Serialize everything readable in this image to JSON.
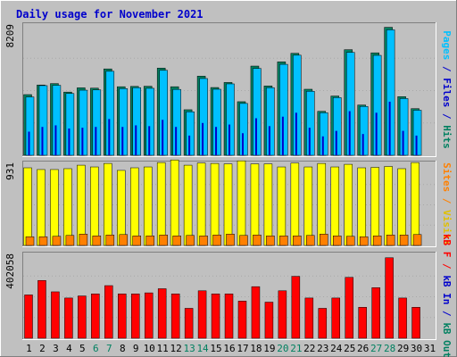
{
  "chart_data": {
    "type": "bar",
    "title": "Daily usage for November 2021",
    "categories": [
      "1",
      "2",
      "3",
      "4",
      "5",
      "6",
      "7",
      "8",
      "9",
      "10",
      "11",
      "12",
      "13",
      "14",
      "15",
      "16",
      "17",
      "18",
      "19",
      "20",
      "21",
      "22",
      "23",
      "24",
      "25",
      "26",
      "27",
      "28",
      "29",
      "30",
      "31"
    ],
    "weekend_days": [
      6,
      7,
      13,
      14,
      20,
      21,
      27,
      28
    ],
    "panels": [
      {
        "id": "hits-files-pages",
        "max_label": "8209",
        "ymax": 8209,
        "axis_labels": [
          {
            "text": "Pages",
            "color": "#00c0ff"
          },
          {
            "text": " / ",
            "color": "#0000cc"
          },
          {
            "text": "Files",
            "color": "#0000cc"
          },
          {
            "text": " / ",
            "color": "#0000cc"
          },
          {
            "text": "Hits",
            "color": "#008060"
          }
        ],
        "series": [
          {
            "name": "Hits",
            "color": "#008060",
            "values": [
              3850,
              4460,
              4550,
              4010,
              4280,
              4260,
              5480,
              4350,
              4370,
              4380,
              5530,
              4350,
              2890,
              5020,
              4300,
              4620,
              3400,
              5660,
              4400,
              5930,
              6470,
              4190,
              2790,
              3760,
              6700,
              3190,
              6500,
              8120,
              3720,
              2960,
              0
            ]
          },
          {
            "name": "Files",
            "color": "#00c0ff",
            "values": [
              3700,
              4420,
              4440,
              3920,
              4130,
              4150,
              5330,
              4230,
              4290,
              4250,
              5390,
              4180,
              2760,
              4870,
              4190,
              4530,
              3290,
              5510,
              4290,
              5770,
              6350,
              4060,
              2700,
              3660,
              6530,
              3100,
              6340,
              7960,
              3600,
              2860,
              0
            ]
          },
          {
            "name": "Pages",
            "color": "#0000cc",
            "values": [
              1500,
              1800,
              1900,
              1700,
              1750,
              1800,
              2300,
              1800,
              1900,
              1850,
              2250,
              1800,
              1250,
              2050,
              1800,
              1950,
              1400,
              2350,
              1850,
              2450,
              2700,
              1750,
              1200,
              1550,
              2800,
              1350,
              2700,
              3400,
              1550,
              1250,
              0
            ]
          }
        ]
      },
      {
        "id": "visits-sites",
        "max_label": "931",
        "ymax": 931,
        "axis_labels": [
          {
            "text": "Sites",
            "color": "#ff8000"
          },
          {
            "text": " / ",
            "color": "#ff8000"
          },
          {
            "text": "Visits",
            "color": "#e0c000"
          }
        ],
        "series": [
          {
            "name": "Visits",
            "color": "#ffff00",
            "values": [
              890,
              870,
              870,
              880,
              920,
              900,
              940,
              860,
              890,
              900,
              950,
              980,
              920,
              945,
              940,
              935,
              970,
              935,
              935,
              900,
              945,
              900,
              940,
              900,
              930,
              890,
              895,
              905,
              880,
              950,
              0
            ]
          },
          {
            "name": "Sites",
            "color": "#ff8000",
            "values": [
              100,
              100,
              105,
              115,
              130,
              110,
              120,
              125,
              110,
              110,
              120,
              110,
              115,
              110,
              120,
              130,
              115,
              120,
              110,
              110,
              110,
              115,
              130,
              110,
              105,
              100,
              110,
              120,
              120,
              125,
              0
            ]
          }
        ]
      },
      {
        "id": "kbin-kbout-kbf",
        "max_label": "402058",
        "ymax": 402058,
        "axis_labels": [
          {
            "text": "kB F",
            "color": "#ff0000"
          },
          {
            "text": " / ",
            "color": "#ff0000"
          },
          {
            "text": "kB In",
            "color": "#0000cc"
          },
          {
            "text": " / ",
            "color": "#0000cc"
          },
          {
            "text": "kB Out",
            "color": "#008060"
          }
        ],
        "series": [
          {
            "name": "kB F",
            "color": "#ff0000",
            "values": [
              210000,
              280000,
              225000,
              195000,
              205000,
              215000,
              255000,
              215000,
              215000,
              220000,
              240000,
              215000,
              145000,
              230000,
              215000,
              215000,
              180000,
              250000,
              175000,
              230000,
              300000,
              195000,
              145000,
              195000,
              295000,
              150000,
              245000,
              390000,
              195000,
              150000,
              0
            ]
          },
          {
            "name": "kB In",
            "color": "#0000cc",
            "values": [
              0,
              0,
              0,
              0,
              0,
              0,
              0,
              0,
              0,
              0,
              0,
              0,
              0,
              0,
              0,
              0,
              0,
              0,
              0,
              0,
              0,
              0,
              0,
              0,
              0,
              0,
              0,
              0,
              0,
              0,
              0
            ]
          },
          {
            "name": "kB Out",
            "color": "#008060",
            "values": [
              0,
              0,
              0,
              0,
              0,
              0,
              0,
              0,
              0,
              0,
              0,
              0,
              0,
              0,
              0,
              0,
              0,
              0,
              0,
              0,
              0,
              0,
              0,
              0,
              0,
              0,
              0,
              0,
              0,
              0,
              0
            ]
          }
        ]
      }
    ]
  },
  "colors": {
    "background": "#c0c0c0",
    "plot_bg": "#c0c0c0",
    "title": "#0000cc",
    "weekday_label": "#000000",
    "weekend_label": "#008060",
    "grid": "#a8a8a8"
  }
}
